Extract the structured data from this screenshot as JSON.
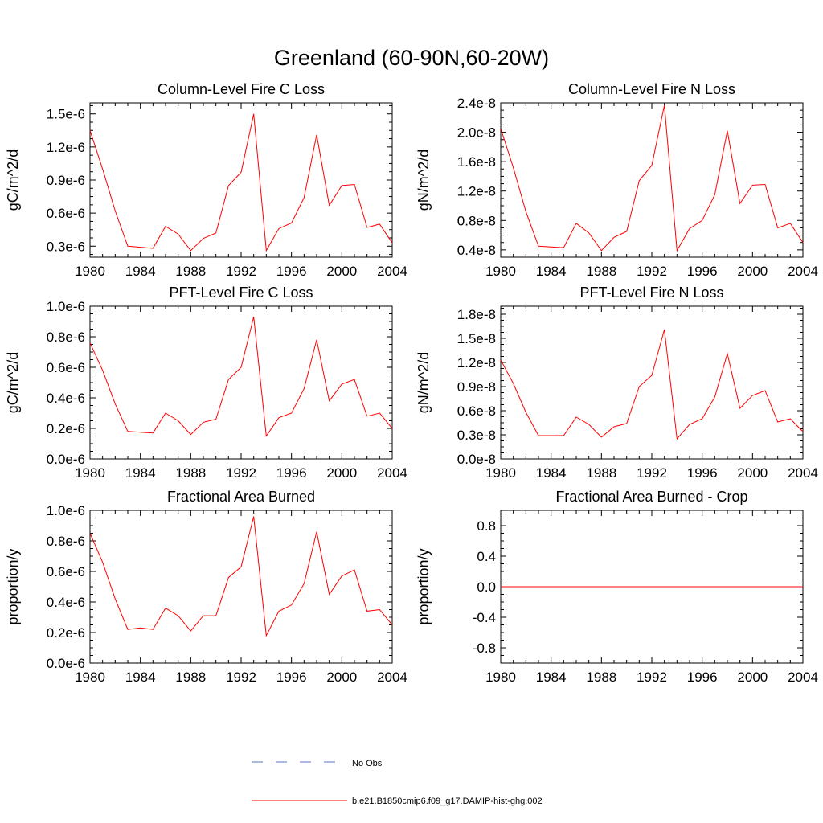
{
  "page": {
    "title": "Greenland (60-90N,60-20W)"
  },
  "legend": {
    "items": [
      {
        "label": "No Obs",
        "color": "#5b73c8",
        "style": "dashed"
      },
      {
        "label": "b.e21.B1850cmip6.f09_g17.DAMIP-hist-ghg.002",
        "color": "#ff0000",
        "style": "solid"
      }
    ]
  },
  "chart_data": [
    {
      "type": "line",
      "title": "Column-Level Fire C Loss",
      "ylabel": "gC/m^2/d",
      "xlim": [
        1980,
        2004
      ],
      "xticks": [
        1980,
        1984,
        1988,
        1992,
        1996,
        2000,
        2004
      ],
      "xtick_labels": [
        "1980",
        "1984",
        "1988",
        "1992",
        "1996",
        "2000",
        "2004"
      ],
      "ylim": [
        2e-07,
        1.6e-06
      ],
      "yticks": [
        3e-07,
        6e-07,
        9e-07,
        1.2e-06,
        1.5e-06
      ],
      "ytick_labels": [
        "0.3e-6",
        "0.6e-6",
        "0.9e-6",
        "1.2e-6",
        "1.5e-6"
      ],
      "x": [
        1980,
        1981,
        1982,
        1983,
        1984,
        1985,
        1986,
        1987,
        1988,
        1989,
        1990,
        1991,
        1992,
        1993,
        1994,
        1995,
        1996,
        1997,
        1998,
        1999,
        2000,
        2001,
        2002,
        2003,
        2004
      ],
      "series": [
        {
          "color": "#ff0000",
          "values": [
            1.35e-06,
            1e-06,
            6.2e-07,
            3e-07,
            2.9e-07,
            2.8e-07,
            4.8e-07,
            4.1e-07,
            2.6e-07,
            3.7e-07,
            4.2e-07,
            8.5e-07,
            9.7e-07,
            1.5e-06,
            2.6e-07,
            4.6e-07,
            5.1e-07,
            7.4e-07,
            1.31e-06,
            6.7e-07,
            8.5e-07,
            8.6e-07,
            4.7e-07,
            5e-07,
            3.3e-07
          ]
        }
      ]
    },
    {
      "type": "line",
      "title": "Column-Level Fire N Loss",
      "ylabel": "gN/m^2/d",
      "xlim": [
        1980,
        2004
      ],
      "xticks": [
        1980,
        1984,
        1988,
        1992,
        1996,
        2000,
        2004
      ],
      "xtick_labels": [
        "1980",
        "1984",
        "1988",
        "1992",
        "1996",
        "2000",
        "2004"
      ],
      "ylim": [
        3e-09,
        2.4e-08
      ],
      "yticks": [
        4e-09,
        8e-09,
        1.2e-08,
        1.6e-08,
        2e-08,
        2.4e-08
      ],
      "ytick_labels": [
        "0.4e-8",
        "0.8e-8",
        "1.2e-8",
        "1.6e-8",
        "2.0e-8",
        "2.4e-8"
      ],
      "x": [
        1980,
        1981,
        1982,
        1983,
        1984,
        1985,
        1986,
        1987,
        1988,
        1989,
        1990,
        1991,
        1992,
        1993,
        1994,
        1995,
        1996,
        1997,
        1998,
        1999,
        2000,
        2001,
        2002,
        2003,
        2004
      ],
      "series": [
        {
          "color": "#ff0000",
          "values": [
            2.05e-08,
            1.52e-08,
            9.2e-09,
            4.5e-09,
            4.4e-09,
            4.3e-09,
            7.6e-09,
            6.3e-09,
            3.9e-09,
            5.7e-09,
            6.5e-09,
            1.34e-08,
            1.55e-08,
            2.37e-08,
            3.9e-09,
            6.9e-09,
            8e-09,
            1.15e-08,
            2.02e-08,
            1.03e-08,
            1.28e-08,
            1.29e-08,
            7e-09,
            7.6e-09,
            5e-09
          ]
        }
      ]
    },
    {
      "type": "line",
      "title": "PFT-Level Fire C Loss",
      "ylabel": "gC/m^2/d",
      "xlim": [
        1980,
        2004
      ],
      "xticks": [
        1980,
        1984,
        1988,
        1992,
        1996,
        2000,
        2004
      ],
      "xtick_labels": [
        "1980",
        "1984",
        "1988",
        "1992",
        "1996",
        "2000",
        "2004"
      ],
      "ylim": [
        0.0,
        1e-06
      ],
      "yticks": [
        0.0,
        2e-07,
        4e-07,
        6e-07,
        8e-07,
        1e-06
      ],
      "ytick_labels": [
        "0.0e-6",
        "0.2e-6",
        "0.4e-6",
        "0.6e-6",
        "0.8e-6",
        "1.0e-6"
      ],
      "x": [
        1980,
        1981,
        1982,
        1983,
        1984,
        1985,
        1986,
        1987,
        1988,
        1989,
        1990,
        1991,
        1992,
        1993,
        1994,
        1995,
        1996,
        1997,
        1998,
        1999,
        2000,
        2001,
        2002,
        2003,
        2004
      ],
      "series": [
        {
          "color": "#ff0000",
          "values": [
            7.6e-07,
            5.8e-07,
            3.6e-07,
            1.8e-07,
            1.75e-07,
            1.7e-07,
            3e-07,
            2.5e-07,
            1.6e-07,
            2.4e-07,
            2.6e-07,
            5.2e-07,
            6e-07,
            9.3e-07,
            1.5e-07,
            2.7e-07,
            3e-07,
            4.6e-07,
            7.8e-07,
            3.8e-07,
            4.9e-07,
            5.2e-07,
            2.8e-07,
            3e-07,
            2e-07
          ]
        }
      ]
    },
    {
      "type": "line",
      "title": "PFT-Level Fire N Loss",
      "ylabel": "gN/m^2/d",
      "xlim": [
        1980,
        2004
      ],
      "xticks": [
        1980,
        1984,
        1988,
        1992,
        1996,
        2000,
        2004
      ],
      "xtick_labels": [
        "1980",
        "1984",
        "1988",
        "1992",
        "1996",
        "2000",
        "2004"
      ],
      "ylim": [
        0.0,
        1.9e-08
      ],
      "yticks": [
        0.0,
        3e-09,
        6e-09,
        9e-09,
        1.2e-08,
        1.5e-08,
        1.8e-08
      ],
      "ytick_labels": [
        "0.0e-8",
        "0.3e-8",
        "0.6e-8",
        "0.9e-8",
        "1.2e-8",
        "1.5e-8",
        "1.8e-8"
      ],
      "x": [
        1980,
        1981,
        1982,
        1983,
        1984,
        1985,
        1986,
        1987,
        1988,
        1989,
        1990,
        1991,
        1992,
        1993,
        1994,
        1995,
        1996,
        1997,
        1998,
        1999,
        2000,
        2001,
        2002,
        2003,
        2004
      ],
      "series": [
        {
          "color": "#ff0000",
          "values": [
            1.23e-08,
            9.4e-09,
            5.8e-09,
            2.9e-09,
            2.9e-09,
            2.9e-09,
            5.2e-09,
            4.3e-09,
            2.7e-09,
            4e-09,
            4.4e-09,
            9e-09,
            1.04e-08,
            1.61e-08,
            2.5e-09,
            4.3e-09,
            5e-09,
            7.7e-09,
            1.31e-08,
            6.3e-09,
            7.9e-09,
            8.5e-09,
            4.6e-09,
            5e-09,
            3.4e-09
          ]
        }
      ]
    },
    {
      "type": "line",
      "title": "Fractional Area Burned",
      "ylabel": "proportion/y",
      "xlim": [
        1980,
        2004
      ],
      "xticks": [
        1980,
        1984,
        1988,
        1992,
        1996,
        2000,
        2004
      ],
      "xtick_labels": [
        "1980",
        "1984",
        "1988",
        "1992",
        "1996",
        "2000",
        "2004"
      ],
      "ylim": [
        0.0,
        1e-06
      ],
      "yticks": [
        0.0,
        2e-07,
        4e-07,
        6e-07,
        8e-07,
        1e-06
      ],
      "ytick_labels": [
        "0.0e-6",
        "0.2e-6",
        "0.4e-6",
        "0.6e-6",
        "0.8e-6",
        "1.0e-6"
      ],
      "x": [
        1980,
        1981,
        1982,
        1983,
        1984,
        1985,
        1986,
        1987,
        1988,
        1989,
        1990,
        1991,
        1992,
        1993,
        1994,
        1995,
        1996,
        1997,
        1998,
        1999,
        2000,
        2001,
        2002,
        2003,
        2004
      ],
      "series": [
        {
          "color": "#ff0000",
          "values": [
            8.5e-07,
            6.6e-07,
            4.2e-07,
            2.2e-07,
            2.3e-07,
            2.2e-07,
            3.6e-07,
            3.1e-07,
            2.1e-07,
            3.1e-07,
            3.1e-07,
            5.6e-07,
            6.3e-07,
            9.6e-07,
            1.8e-07,
            3.4e-07,
            3.8e-07,
            5.2e-07,
            8.6e-07,
            4.5e-07,
            5.7e-07,
            6.1e-07,
            3.4e-07,
            3.5e-07,
            2.5e-07
          ]
        }
      ]
    },
    {
      "type": "line",
      "title": "Fractional Area Burned - Crop",
      "ylabel": "proportion/y",
      "xlim": [
        1980,
        2004
      ],
      "xticks": [
        1980,
        1984,
        1988,
        1992,
        1996,
        2000,
        2004
      ],
      "xtick_labels": [
        "1980",
        "1984",
        "1988",
        "1992",
        "1996",
        "2000",
        "2004"
      ],
      "ylim": [
        -1.0,
        1.0
      ],
      "yticks": [
        -0.8,
        -0.4,
        0.0,
        0.4,
        0.8
      ],
      "ytick_labels": [
        "-0.8",
        "-0.4",
        "0.0",
        "0.4",
        "0.8"
      ],
      "x": [
        1980,
        1981,
        1982,
        1983,
        1984,
        1985,
        1986,
        1987,
        1988,
        1989,
        1990,
        1991,
        1992,
        1993,
        1994,
        1995,
        1996,
        1997,
        1998,
        1999,
        2000,
        2001,
        2002,
        2003,
        2004
      ],
      "series": [
        {
          "color": "#ff0000",
          "values": [
            0,
            0,
            0,
            0,
            0,
            0,
            0,
            0,
            0,
            0,
            0,
            0,
            0,
            0,
            0,
            0,
            0,
            0,
            0,
            0,
            0,
            0,
            0,
            0,
            0
          ]
        }
      ]
    }
  ]
}
